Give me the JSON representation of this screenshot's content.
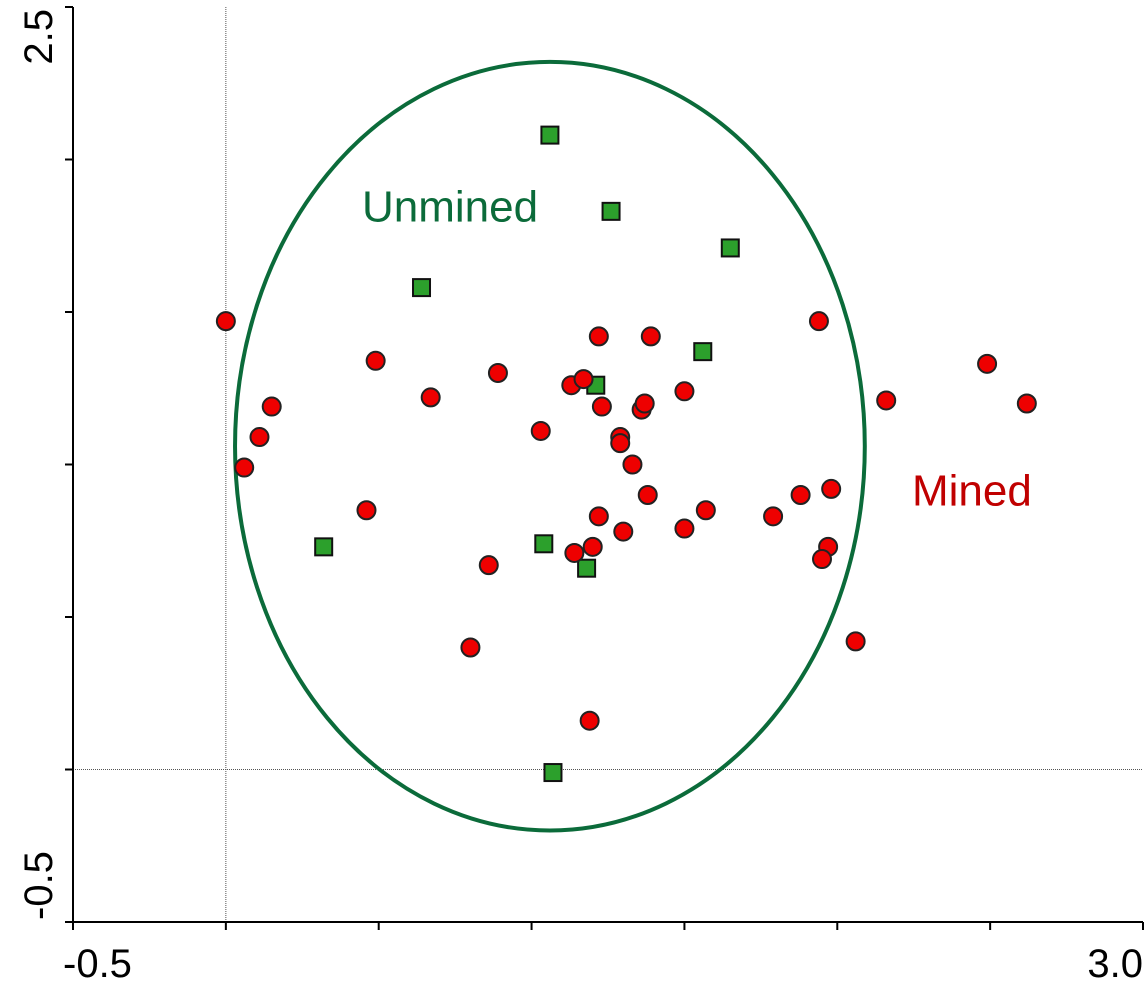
{
  "chart_data": {
    "type": "scatter",
    "xlim": [
      -0.5,
      3.0
    ],
    "ylim": [
      -0.5,
      2.5
    ],
    "xticks": [
      {
        "value": -0.5,
        "label": "-0.5"
      },
      {
        "value": 0,
        "label": null
      },
      {
        "value": 0.5,
        "label": null
      },
      {
        "value": 1.0,
        "label": null
      },
      {
        "value": 1.5,
        "label": null
      },
      {
        "value": 2.0,
        "label": null
      },
      {
        "value": 2.5,
        "label": null
      },
      {
        "value": 3.0,
        "label": "3.0"
      }
    ],
    "yticks": [
      {
        "value": -0.5,
        "label": "-0.5"
      },
      {
        "value": 0,
        "label": null
      },
      {
        "value": 0.5,
        "label": null
      },
      {
        "value": 1.0,
        "label": null
      },
      {
        "value": 1.5,
        "label": null
      },
      {
        "value": 2.0,
        "label": null
      },
      {
        "value": 2.5,
        "label": "2.5"
      }
    ],
    "zero_lines": true,
    "series": [
      {
        "name": "Unmined",
        "marker": "square",
        "color": "#2ca02c",
        "label_color": "#0b6b3a",
        "x": [
          1.06,
          1.26,
          1.65,
          0.64,
          1.56,
          1.21,
          0.32,
          1.04,
          1.18,
          1.07
        ],
        "values": [
          2.08,
          1.83,
          1.71,
          1.58,
          1.37,
          1.26,
          0.73,
          0.74,
          0.66,
          -0.01
        ]
      },
      {
        "name": "Mined",
        "marker": "circle",
        "color": "#ee0000",
        "label_color": "#c00000",
        "x": [
          0.0,
          0.49,
          0.15,
          0.11,
          0.06,
          0.67,
          0.89,
          1.22,
          1.39,
          1.13,
          1.17,
          1.23,
          1.36,
          1.37,
          1.5,
          1.03,
          1.29,
          1.29,
          1.33,
          1.38,
          0.46,
          1.22,
          1.3,
          1.2,
          1.14,
          0.86,
          1.5,
          1.57,
          1.79,
          1.88,
          1.98,
          1.94,
          2.16,
          2.49,
          2.62,
          1.97,
          1.95,
          2.06,
          0.8,
          1.19
        ],
        "values": [
          1.47,
          1.34,
          1.19,
          1.09,
          0.99,
          1.22,
          1.3,
          1.42,
          1.42,
          1.26,
          1.28,
          1.19,
          1.18,
          1.2,
          1.24,
          1.11,
          1.09,
          1.07,
          1.0,
          0.9,
          0.85,
          0.83,
          0.78,
          0.73,
          0.71,
          0.67,
          0.79,
          0.85,
          0.83,
          0.9,
          0.92,
          1.47,
          1.21,
          1.33,
          1.2,
          0.73,
          0.69,
          0.42,
          0.4,
          0.16
        ]
      }
    ],
    "ellipse": {
      "center_x": 1.06,
      "center_y": 1.06,
      "rx": 1.03,
      "ry": 1.26,
      "color": "#0b6b3a"
    }
  }
}
